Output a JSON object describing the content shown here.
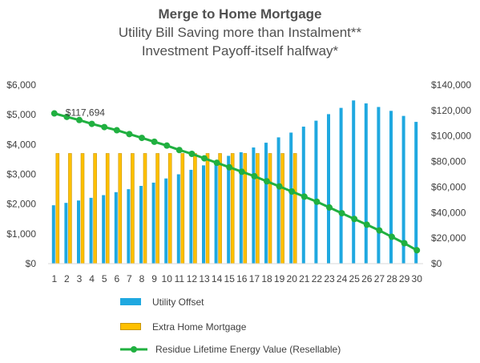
{
  "chart_data": {
    "type": "bar+line",
    "title": "Merge to Home Mortgage",
    "subtitle_lines": [
      "Utility Bill Saving more than Instalment**",
      "Investment Payoff-itself halfway*"
    ],
    "categories": [
      "1",
      "2",
      "3",
      "4",
      "5",
      "6",
      "7",
      "8",
      "9",
      "10",
      "11",
      "12",
      "13",
      "14",
      "15",
      "16",
      "17",
      "18",
      "19",
      "20",
      "21",
      "22",
      "23",
      "24",
      "25",
      "26",
      "27",
      "28",
      "29",
      "30"
    ],
    "series": [
      {
        "name": "Utility Offset",
        "type": "bar",
        "axis": "left",
        "color": "#1fa8e0",
        "values": [
          1960,
          2040,
          2120,
          2210,
          2300,
          2400,
          2500,
          2610,
          2720,
          2860,
          3000,
          3150,
          3300,
          3450,
          3620,
          3740,
          3900,
          4060,
          4240,
          4400,
          4600,
          4800,
          5020,
          5230,
          5480,
          5380,
          5260,
          5130,
          4960,
          4760
        ]
      },
      {
        "name": "Extra Home Mortgage",
        "type": "bar",
        "axis": "left",
        "color": "#ffc000",
        "values": [
          3700,
          3700,
          3700,
          3700,
          3700,
          3700,
          3700,
          3700,
          3700,
          3700,
          3700,
          3700,
          3700,
          3700,
          3700,
          3700,
          3700,
          3700,
          3700,
          3700,
          null,
          null,
          null,
          null,
          null,
          null,
          null,
          null,
          null,
          null
        ]
      },
      {
        "name": "Residue Lifetime Energy Value (Resellable)",
        "type": "line",
        "axis": "right",
        "color": "#20b040",
        "values": [
          117694,
          115000,
          112500,
          109500,
          107000,
          104500,
          101500,
          98500,
          95500,
          92500,
          89000,
          86000,
          82500,
          79000,
          75500,
          72000,
          68500,
          64500,
          60500,
          56500,
          52500,
          48500,
          44000,
          39500,
          35000,
          30500,
          26000,
          21000,
          16000,
          10500
        ]
      }
    ],
    "y_left": {
      "min": 0,
      "max": 6000,
      "ticks": [
        "$0",
        "$1,000",
        "$2,000",
        "$3,000",
        "$4,000",
        "$5,000",
        "$6,000"
      ]
    },
    "y_right": {
      "min": 0,
      "max": 140000,
      "ticks": [
        "$0",
        "$20,000",
        "$40,000",
        "$60,000",
        "$80,000",
        "$100,000",
        "$120,000",
        "$140,000"
      ]
    },
    "annotation": "$117,694",
    "legend_position": "bottom"
  }
}
